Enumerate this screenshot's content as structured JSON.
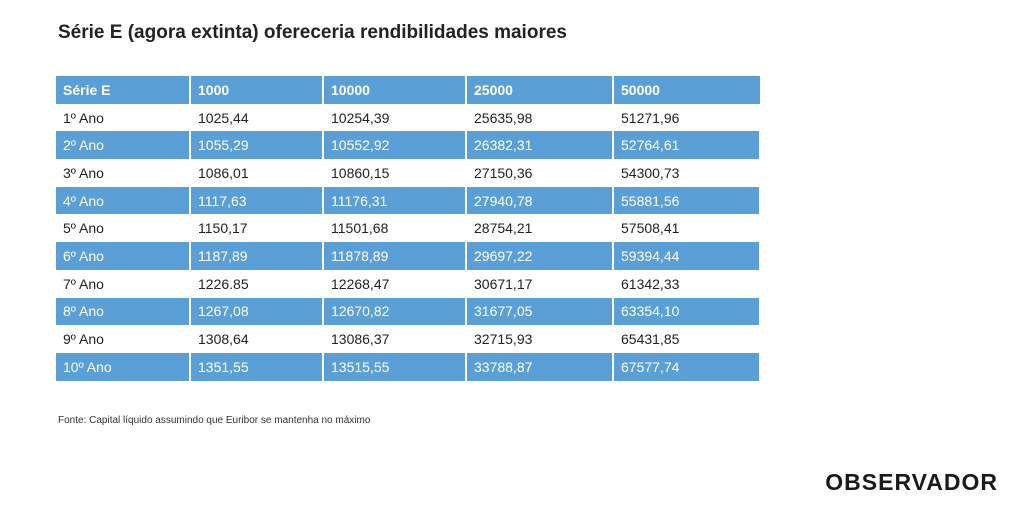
{
  "title": "Série E (agora extinta) ofereceria rendibilidades maiores",
  "table": {
    "headers": [
      "Série E",
      "1000",
      "10000",
      "25000",
      "50000"
    ],
    "rows": [
      [
        "1º Ano",
        "1025,44",
        "10254,39",
        "25635,98",
        "51271,96"
      ],
      [
        "2º Ano",
        "1055,29",
        "10552,92",
        "26382,31",
        "52764,61"
      ],
      [
        "3º Ano",
        "1086,01",
        "10860,15",
        "27150,36",
        "54300,73"
      ],
      [
        "4º Ano",
        "1117,63",
        "11176,31",
        "27940,78",
        "55881,56"
      ],
      [
        "5º Ano",
        "1150,17",
        "11501,68",
        "28754,21",
        "57508,41"
      ],
      [
        "6º Ano",
        "1187,89",
        "11878,89",
        "29697,22",
        "59394,44"
      ],
      [
        "7º Ano",
        "1226.85",
        "12268,47",
        "30671,17",
        "61342,33"
      ],
      [
        "8º Ano",
        "1267,08",
        "12670,82",
        "31677,05",
        "63354,10"
      ],
      [
        "9º Ano",
        "1308,64",
        "13086,37",
        "32715,93",
        "65431,85"
      ],
      [
        "10º Ano",
        "1351,55",
        "13515,55",
        "33788,87",
        "67577,74"
      ]
    ]
  },
  "source": "Fonte: Capital líquido assumindo que Euribor se mantenha no máximo",
  "brand": "OBSERVADOR",
  "colors": {
    "header_bg": "#5a9fd6",
    "stripe_bg": "#5a9fd6",
    "text": "#222222"
  }
}
